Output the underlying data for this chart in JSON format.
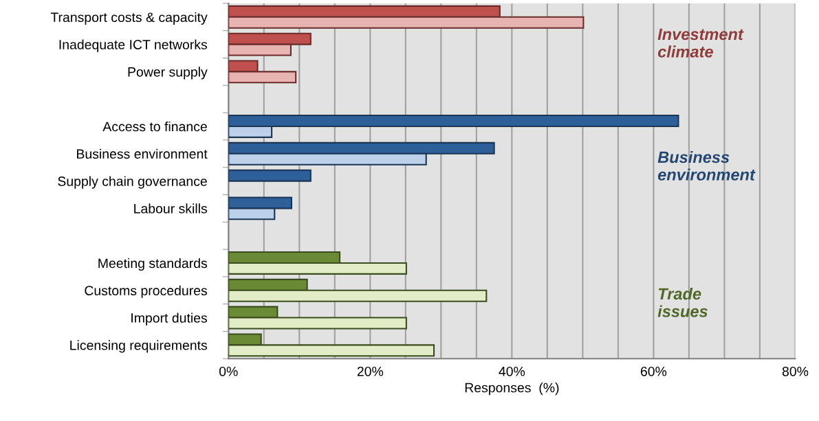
{
  "chart_data": {
    "type": "bar",
    "orientation": "horizontal",
    "xlabel": "Responses  (%)",
    "categories": [
      "Transport costs & capacity",
      "Inadequate ICT networks",
      "Power supply",
      null,
      "Access to finance",
      "Business environment",
      "Supply chain governance",
      "Labour skills",
      null,
      "Meeting standards",
      "Customs procedures",
      "Import duties",
      "Licensing requirements"
    ],
    "series": [
      {
        "values": [
          38.3,
          11.6,
          4.1,
          null,
          63.5,
          37.5,
          11.6,
          8.9,
          null,
          15.7,
          11.1,
          6.9,
          4.6
        ],
        "colors": [
          "#c0504d",
          "#c0504d",
          "#c0504d",
          "#c0504d",
          "#2f5f98",
          "#2f5f98",
          "#2f5f98",
          "#2f5f98",
          "#2f5f98",
          "#6a8a35",
          "#6a8a35",
          "#6a8a35",
          "#6a8a35"
        ]
      },
      {
        "values": [
          50.1,
          8.8,
          9.5,
          null,
          6.1,
          27.9,
          null,
          6.5,
          null,
          25.1,
          36.4,
          25.1,
          29.0
        ],
        "colors": [
          "#e8b4b2",
          "#e8b4b2",
          "#e8b4b2",
          "#e8b4b2",
          "#bcd0ea",
          "#bcd0ea",
          "#bcd0ea",
          "#bcd0ea",
          "#bcd0ea",
          "#e2edc8",
          "#e2edc8",
          "#e2edc8",
          "#e2edc8"
        ]
      }
    ],
    "annotations": [
      "Investment\nclimate",
      "Business\nenvironment",
      "Trade\nissues"
    ],
    "xlim": [
      0,
      80
    ],
    "xticks": [
      {
        "value": 0,
        "label": "0%"
      },
      {
        "value": 5,
        "label": null
      },
      {
        "value": 10,
        "label": null
      },
      {
        "value": 15,
        "label": null
      },
      {
        "value": 20,
        "label": "20%"
      },
      {
        "value": 25,
        "label": null
      },
      {
        "value": 30,
        "label": null
      },
      {
        "value": 35,
        "label": null
      },
      {
        "value": 40,
        "label": "40%"
      },
      {
        "value": 45,
        "label": null
      },
      {
        "value": 50,
        "label": null
      },
      {
        "value": 55,
        "label": null
      },
      {
        "value": 60,
        "label": "60%"
      },
      {
        "value": 65,
        "label": null
      },
      {
        "value": 70,
        "label": null
      },
      {
        "value": 75,
        "label": null
      },
      {
        "value": 80,
        "label": "80%"
      }
    ],
    "grid": "x",
    "legend": false
  }
}
